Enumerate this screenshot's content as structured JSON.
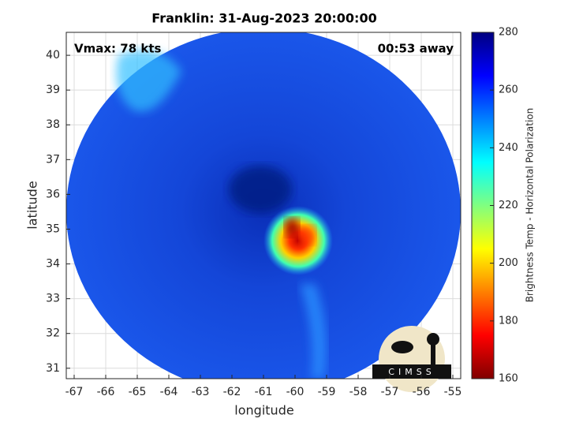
{
  "chart_data": {
    "type": "image",
    "title": "Franklin: 31-Aug-2023 20:00:00",
    "annotations": [
      "Vmax: 78 kts",
      "00:53 away"
    ],
    "xlabel": "longitude",
    "ylabel": "latitude",
    "xlim": [
      -67.25,
      -54.75
    ],
    "ylim": [
      30.7,
      40.66
    ],
    "xticks": [
      -67,
      -66,
      -65,
      -64,
      -63,
      -62,
      -61,
      -60,
      -59,
      -58,
      -57,
      -56,
      -55
    ],
    "yticks": [
      31,
      32,
      33,
      34,
      35,
      36,
      37,
      38,
      39,
      40
    ],
    "grid": true,
    "colorbar": {
      "label": "Brightness Temp - Horizontal Polarization",
      "lim": [
        160,
        280
      ],
      "ticks": [
        160,
        180,
        200,
        220,
        240,
        260,
        280
      ],
      "colormap": "jet"
    },
    "logo": "CIMSS"
  }
}
